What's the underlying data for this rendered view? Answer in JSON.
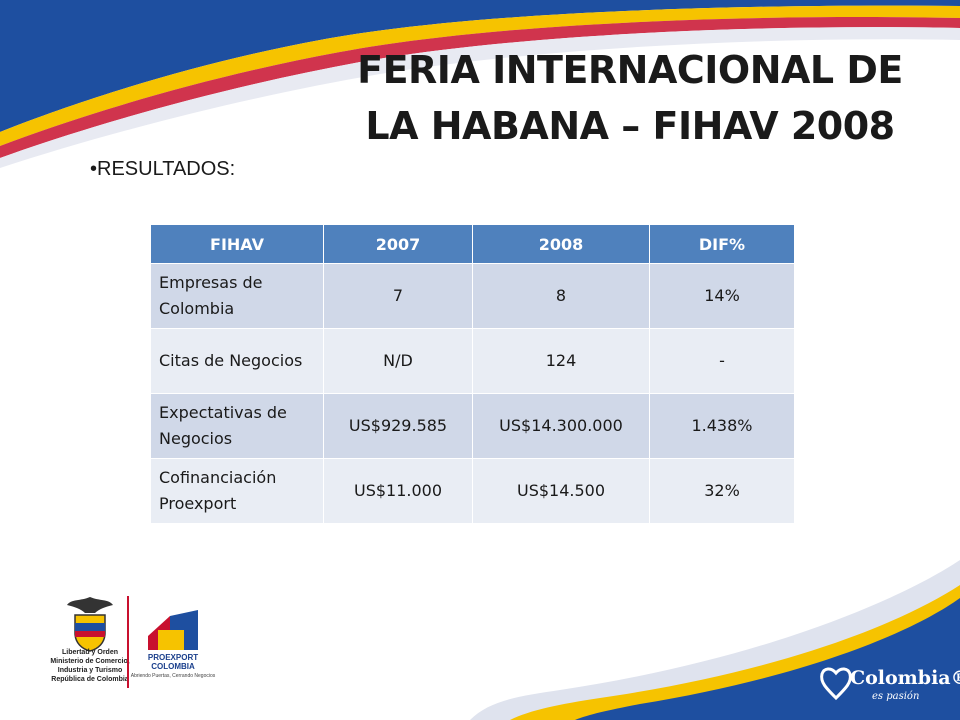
{
  "slide": {
    "title_line1": "FERIA INTERNACIONAL DE",
    "title_line2": "LA HABANA – FIHAV 2008",
    "bullet": "•RESULTADOS:"
  },
  "table": {
    "headers": [
      "FIHAV",
      "2007",
      "2008",
      "DIF%"
    ],
    "rows": [
      [
        "Empresas de Colombia",
        "7",
        "8",
        "14%"
      ],
      [
        "Citas de Negocios",
        "N/D",
        "124",
        "-"
      ],
      [
        "Expectativas de Negocios",
        "US$929.585",
        "US$14.300.000",
        "1.438%"
      ],
      [
        "Cofinanciación Proexport",
        "US$11.000",
        "US$14.500",
        "32%"
      ]
    ]
  },
  "footer": {
    "ministry_motto": "Libertad y Orden",
    "ministry_line1": "Ministerio de Comercio,",
    "ministry_line2": "Industria y Turismo",
    "ministry_line3": "República de Colombia",
    "proexport_line1": "PROEXPORT",
    "proexport_line2": "COLOMBIA",
    "proexport_tagline": "Abriendo Puertas, Cerrando Negocios",
    "colombia_brand": "Colombia®",
    "colombia_tagline": "es pasión"
  },
  "colors": {
    "header_blue": "#4f81bd",
    "row_dark": "#d0d8e8",
    "row_light": "#e9edf4",
    "swoosh_yellow": "#f6c300",
    "swoosh_blue": "#1e4fa0",
    "brand_red": "#c8102e"
  }
}
